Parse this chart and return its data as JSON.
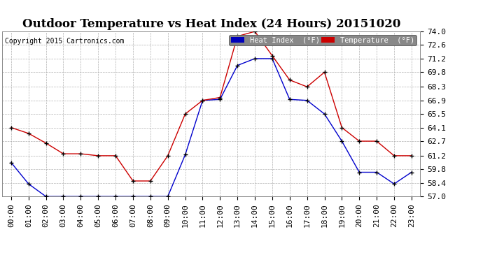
{
  "title": "Outdoor Temperature vs Heat Index (24 Hours) 20151020",
  "copyright": "Copyright 2015 Cartronics.com",
  "legend_heat": "Heat Index  (°F)",
  "legend_temp": "Temperature  (°F)",
  "hours": [
    "00:00",
    "01:00",
    "02:00",
    "03:00",
    "04:00",
    "05:00",
    "06:00",
    "07:00",
    "08:00",
    "09:00",
    "10:00",
    "11:00",
    "12:00",
    "13:00",
    "14:00",
    "15:00",
    "16:00",
    "17:00",
    "18:00",
    "19:00",
    "20:00",
    "21:00",
    "22:00",
    "23:00"
  ],
  "heat_index": [
    60.5,
    58.3,
    57.0,
    57.0,
    57.0,
    57.0,
    57.0,
    57.0,
    57.0,
    57.0,
    61.3,
    66.9,
    67.0,
    70.5,
    71.2,
    71.2,
    67.0,
    66.9,
    65.5,
    62.7,
    59.5,
    59.5,
    58.3,
    59.5
  ],
  "temperature": [
    64.1,
    63.5,
    62.5,
    61.4,
    61.4,
    61.2,
    61.2,
    58.6,
    58.6,
    61.2,
    65.5,
    66.9,
    67.2,
    73.5,
    74.0,
    71.5,
    69.0,
    68.3,
    69.8,
    64.1,
    62.7,
    62.7,
    61.2,
    61.2
  ],
  "ylim": [
    57.0,
    74.0
  ],
  "yticks": [
    57.0,
    58.4,
    59.8,
    61.2,
    62.7,
    64.1,
    65.5,
    66.9,
    68.3,
    69.8,
    71.2,
    72.6,
    74.0
  ],
  "heat_color": "#0000cc",
  "temp_color": "#cc0000",
  "bg_color": "#ffffff",
  "grid_color": "#b0b0b0",
  "title_fontsize": 12,
  "tick_fontsize": 8,
  "legend_heat_bg": "#0000bb",
  "legend_temp_bg": "#cc0000"
}
